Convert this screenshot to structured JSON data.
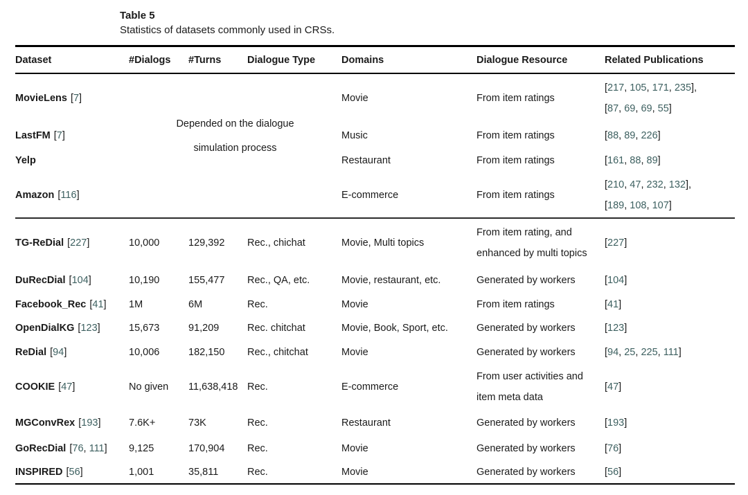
{
  "caption": {
    "label": "Table 5",
    "text": "Statistics of datasets commonly used in CRSs."
  },
  "colors": {
    "citation": "#3d6060",
    "text": "#1a1a1a"
  },
  "columns": [
    "Dataset",
    "#Dialogs",
    "#Turns",
    "Dialogue Type",
    "Domains",
    "Dialogue Resource",
    "Related Publications"
  ],
  "span_note": {
    "line1": "Depended on the dialogue",
    "line2": "simulation process"
  },
  "rows": [
    {
      "name": "MovieLens",
      "cite": [
        7
      ],
      "domains": "Movie",
      "resource": [
        "From item ratings"
      ],
      "pubs": [
        [
          217,
          105,
          171,
          235
        ],
        [
          87,
          69,
          69,
          55
        ]
      ]
    },
    {
      "name": "LastFM",
      "cite": [
        7
      ],
      "domains": "Music",
      "resource": [
        "From item ratings"
      ],
      "pubs": [
        [
          88,
          89,
          226
        ]
      ]
    },
    {
      "name": "Yelp",
      "cite": [],
      "domains": "Restaurant",
      "resource": [
        "From item ratings"
      ],
      "pubs": [
        [
          161,
          88,
          89
        ]
      ]
    },
    {
      "name": "Amazon",
      "cite": [
        116
      ],
      "domains": "E-commerce",
      "resource": [
        "From item ratings"
      ],
      "pubs": [
        [
          210,
          47,
          232,
          132
        ],
        [
          189,
          108,
          107
        ]
      ]
    },
    {
      "name": "TG-ReDial",
      "cite": [
        227
      ],
      "dialogs": "10,000",
      "turns": "129,392",
      "type": "Rec., chichat",
      "domains": "Movie, Multi topics",
      "resource": [
        "From item rating, and",
        "enhanced by multi topics"
      ],
      "pubs": [
        [
          227
        ]
      ]
    },
    {
      "name": "DuRecDial",
      "cite": [
        104
      ],
      "dialogs": "10,190",
      "turns": "155,477",
      "type": "Rec., QA, etc.",
      "domains": "Movie, restaurant, etc.",
      "resource": [
        "Generated by workers"
      ],
      "pubs": [
        [
          104
        ]
      ]
    },
    {
      "name": "Facebook_Rec",
      "cite": [
        41
      ],
      "dialogs": "1M",
      "turns": "6M",
      "type": "Rec.",
      "domains": "Movie",
      "resource": [
        "From item ratings"
      ],
      "pubs": [
        [
          41
        ]
      ]
    },
    {
      "name": "OpenDialKG",
      "cite": [
        123
      ],
      "dialogs": "15,673",
      "turns": "91,209",
      "type": "Rec. chitchat",
      "domains": "Movie, Book, Sport, etc.",
      "resource": [
        "Generated by workers"
      ],
      "pubs": [
        [
          123
        ]
      ]
    },
    {
      "name": "ReDial",
      "cite": [
        94
      ],
      "dialogs": "10,006",
      "turns": "182,150",
      "type": "Rec., chitchat",
      "domains": "Movie",
      "resource": [
        "Generated by workers"
      ],
      "pubs": [
        [
          94,
          25,
          225,
          111
        ]
      ]
    },
    {
      "name": "COOKIE",
      "cite": [
        47
      ],
      "dialogs": "No given",
      "turns": "11,638,418",
      "type": "Rec.",
      "domains": "E-commerce",
      "resource": [
        "From user activities and",
        "item meta data"
      ],
      "pubs": [
        [
          47
        ]
      ]
    },
    {
      "name": "MGConvRex",
      "cite": [
        193
      ],
      "dialogs": "7.6K+",
      "turns": "73K",
      "type": "Rec.",
      "domains": "Restaurant",
      "resource": [
        "Generated by workers"
      ],
      "pubs": [
        [
          193
        ]
      ]
    },
    {
      "name": "GoRecDial",
      "cite": [
        76,
        111
      ],
      "dialogs": "9,125",
      "turns": "170,904",
      "type": "Rec.",
      "domains": "Movie",
      "resource": [
        "Generated by workers"
      ],
      "pubs": [
        [
          76
        ]
      ]
    },
    {
      "name": "INSPIRED",
      "cite": [
        56
      ],
      "dialogs": "1,001",
      "turns": "35,811",
      "type": "Rec.",
      "domains": "Movie",
      "resource": [
        "Generated by workers"
      ],
      "pubs": [
        [
          56
        ]
      ]
    }
  ]
}
